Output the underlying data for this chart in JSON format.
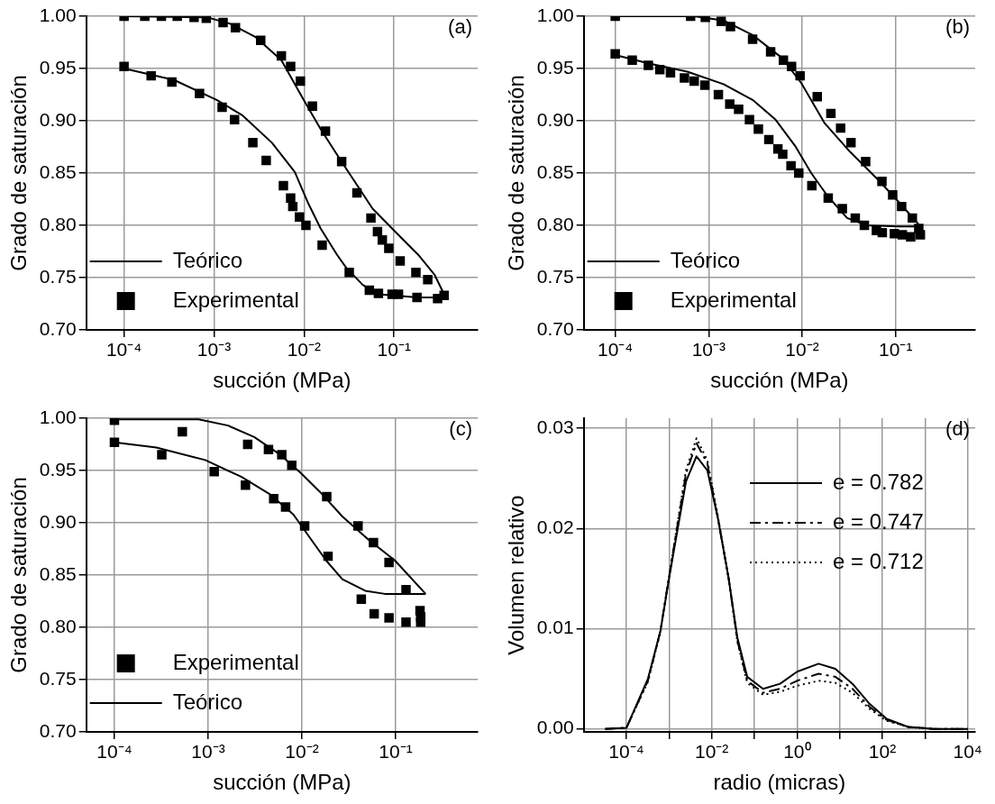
{
  "chart_data": [
    {
      "type": "scatter",
      "xlabel": "succión (MPa)",
      "ylabel": "Grado de saturación",
      "annotations": [
        "(a)"
      ],
      "log": "x",
      "grid": true,
      "legend": "bottom left",
      "xlim": [
        3.8e-05,
        0.85
      ],
      "ylim": [
        0.7,
        1.0
      ],
      "xticks": [
        {
          "value": 0.0001,
          "label": "10⁻⁴"
        },
        {
          "value": 0.001,
          "label": "10⁻³"
        },
        {
          "value": 0.01,
          "label": "10⁻²"
        },
        {
          "value": 0.1,
          "label": "10⁻¹"
        }
      ],
      "yticks": [
        {
          "value": 0.7,
          "label": "0.70"
        },
        {
          "value": 0.75,
          "label": "0.75"
        },
        {
          "value": 0.8,
          "label": "0.80"
        },
        {
          "value": 0.85,
          "label": "0.85"
        },
        {
          "value": 0.9,
          "label": "0.90"
        },
        {
          "value": 0.95,
          "label": "0.95"
        },
        {
          "value": 1,
          "label": "1.00"
        }
      ],
      "series": [
        {
          "name": "Teórico",
          "type": "line",
          "color": "#000000",
          "marker": "none",
          "line_style": "solid",
          "x": [
            0.0001,
            0.00083,
            0.00149,
            0.0029,
            0.0056,
            0.0099,
            0.0153,
            0.0252,
            0.0578,
            0.0951,
            0.185,
            0.281,
            0.36
          ],
          "values": [
            1.0,
            0.999,
            0.993,
            0.98,
            0.958,
            0.92,
            0.892,
            0.863,
            0.816,
            0.797,
            0.772,
            0.753,
            0.734
          ]
        },
        {
          "type": "line",
          "color": "#000000",
          "marker": "none",
          "line_style": "solid",
          "x": [
            0.0001,
            0.00036,
            0.00107,
            0.00208,
            0.0044,
            0.0079,
            0.011,
            0.0153,
            0.0232,
            0.0297,
            0.045,
            0.068,
            0.185,
            0.36
          ],
          "values": [
            0.95,
            0.939,
            0.92,
            0.905,
            0.879,
            0.851,
            0.822,
            0.797,
            0.772,
            0.759,
            0.743,
            0.734,
            0.731,
            0.731
          ]
        },
        {
          "name": "Experimental",
          "type": "scatter",
          "color": "#000000",
          "marker": "square",
          "x": [
            0.0001,
            0.00017,
            0.00026,
            0.00039,
            0.0006,
            0.00082,
            0.00126,
            0.00173,
            0.0033,
            0.0056,
            0.0071,
            0.0091,
            0.0124,
            0.0173,
            0.0262,
            0.0387,
            0.0554,
            0.0655,
            0.0741,
            0.0875,
            0.117,
            0.175,
            0.237,
            0.36
          ],
          "values": [
            1.0,
            1.0,
            1.0,
            1.0,
            0.999,
            0.998,
            0.994,
            0.989,
            0.977,
            0.962,
            0.952,
            0.938,
            0.914,
            0.89,
            0.861,
            0.831,
            0.807,
            0.794,
            0.786,
            0.778,
            0.766,
            0.755,
            0.748,
            0.733
          ]
        },
        {
          "type": "scatter",
          "color": "#000000",
          "marker": "square",
          "x": [
            0.0001,
            0.0002,
            0.00034,
            0.00069,
            0.00123,
            0.00169,
            0.0027,
            0.0038,
            0.0059,
            0.0071,
            0.0075,
            0.0089,
            0.0105,
            0.0159,
            0.0318,
            0.0532,
            0.0671,
            0.0951,
            0.112,
            0.18,
            0.305
          ],
          "values": [
            0.952,
            0.943,
            0.937,
            0.926,
            0.913,
            0.901,
            0.879,
            0.862,
            0.838,
            0.826,
            0.818,
            0.808,
            0.8,
            0.781,
            0.755,
            0.738,
            0.735,
            0.734,
            0.734,
            0.731,
            0.73
          ]
        }
      ]
    },
    {
      "type": "scatter",
      "xlabel": "succión (MPa)",
      "ylabel": "Grado de saturación",
      "annotations": [
        "(b)"
      ],
      "log": "x",
      "grid": true,
      "legend": "bottom left",
      "xlim": [
        4.6e-05,
        0.71
      ],
      "ylim": [
        0.7,
        1.0
      ],
      "xticks": [
        {
          "value": 0.0001,
          "label": "10⁻⁴"
        },
        {
          "value": 0.001,
          "label": "10⁻³"
        },
        {
          "value": 0.01,
          "label": "10⁻²"
        },
        {
          "value": 0.1,
          "label": "10⁻¹"
        }
      ],
      "yticks": [
        {
          "value": 0.7,
          "label": "0.70"
        },
        {
          "value": 0.75,
          "label": "0.75"
        },
        {
          "value": 0.8,
          "label": "0.80"
        },
        {
          "value": 0.85,
          "label": "0.85"
        },
        {
          "value": 0.9,
          "label": "0.90"
        },
        {
          "value": 0.95,
          "label": "0.95"
        },
        {
          "value": 1,
          "label": "1.00"
        }
      ],
      "series": [
        {
          "name": "Teórico",
          "type": "line",
          "color": "#000000",
          "marker": "none",
          "line_style": "solid",
          "x": [
            0.0001,
            0.0007,
            0.00144,
            0.00295,
            0.0061,
            0.0098,
            0.0173,
            0.0328,
            0.0675,
            0.109,
            0.184
          ],
          "values": [
            1.0,
            1.0,
            0.996,
            0.982,
            0.96,
            0.936,
            0.898,
            0.87,
            0.842,
            0.822,
            0.799
          ]
        },
        {
          "type": "line",
          "color": "#000000",
          "marker": "none",
          "line_style": "solid",
          "x": [
            0.0001,
            0.000226,
            0.00059,
            0.00144,
            0.00295,
            0.0052,
            0.0084,
            0.0125,
            0.0187,
            0.0303,
            0.049,
            0.109,
            0.184
          ],
          "values": [
            0.963,
            0.955,
            0.947,
            0.935,
            0.92,
            0.901,
            0.876,
            0.85,
            0.828,
            0.807,
            0.8,
            0.799,
            0.799
          ]
        },
        {
          "name": "Experimental",
          "type": "scatter",
          "color": "#000000",
          "marker": "square",
          "x": [
            0.0001,
            0.00064,
            0.00092,
            0.00136,
            0.00171,
            0.00295,
            0.0046,
            0.0063,
            0.0077,
            0.0095,
            0.0145,
            0.0203,
            0.0258,
            0.0333,
            0.0478,
            0.0714,
            0.093,
            0.116,
            0.151,
            0.177,
            0.184
          ],
          "values": [
            1.0,
            1.0,
            0.999,
            0.995,
            0.99,
            0.978,
            0.966,
            0.958,
            0.952,
            0.943,
            0.923,
            0.907,
            0.893,
            0.879,
            0.861,
            0.842,
            0.829,
            0.818,
            0.807,
            0.797,
            0.791
          ]
        },
        {
          "type": "scatter",
          "color": "#000000",
          "marker": "square",
          "x": [
            0.0001,
            0.000152,
            0.000226,
            0.0003,
            0.00039,
            0.00055,
            0.0007,
            0.00091,
            0.00127,
            0.00168,
            0.00209,
            0.00273,
            0.0034,
            0.0044,
            0.0055,
            0.0062,
            0.0076,
            0.0092,
            0.0127,
            0.019,
            0.0269,
            0.037,
            0.0463,
            0.0623,
            0.072,
            0.097,
            0.118,
            0.145
          ],
          "values": [
            0.964,
            0.958,
            0.953,
            0.949,
            0.946,
            0.941,
            0.938,
            0.934,
            0.925,
            0.916,
            0.911,
            0.901,
            0.892,
            0.882,
            0.873,
            0.868,
            0.857,
            0.85,
            0.838,
            0.826,
            0.816,
            0.807,
            0.8,
            0.795,
            0.793,
            0.792,
            0.791,
            0.789
          ]
        }
      ]
    },
    {
      "type": "scatter",
      "xlabel": "succión (MPa)",
      "ylabel": "Grado de saturación",
      "annotations": [
        "(c)"
      ],
      "log": "x",
      "grid": true,
      "legend": "bottom left",
      "xlim": [
        5e-05,
        0.75
      ],
      "ylim": [
        0.7,
        1.0
      ],
      "xticks": [
        {
          "value": 0.0001,
          "label": "10⁻⁴"
        },
        {
          "value": 0.001,
          "label": "10⁻³"
        },
        {
          "value": 0.01,
          "label": "10⁻²"
        },
        {
          "value": 0.1,
          "label": "10⁻¹"
        }
      ],
      "yticks": [
        {
          "value": 0.7,
          "label": "0.70"
        },
        {
          "value": 0.75,
          "label": "0.75"
        },
        {
          "value": 0.8,
          "label": "0.80"
        },
        {
          "value": 0.85,
          "label": "0.85"
        },
        {
          "value": 0.9,
          "label": "0.90"
        },
        {
          "value": 0.95,
          "label": "0.95"
        },
        {
          "value": 1,
          "label": "1.00"
        }
      ],
      "series": [
        {
          "name": "Experimental",
          "type": "scatter",
          "color": "#000000",
          "marker": "square",
          "x": [
            0.0001,
            0.00053,
            0.00264,
            0.0044,
            0.0061,
            0.0078,
            0.0184,
            0.0397,
            0.058,
            0.085,
            0.129
          ],
          "values": [
            0.998,
            0.987,
            0.975,
            0.97,
            0.965,
            0.955,
            0.925,
            0.897,
            0.881,
            0.862,
            0.836
          ]
        },
        {
          "type": "scatter",
          "color": "#000000",
          "marker": "square",
          "x": [
            0.0001,
            0.00032,
            0.00116,
            0.0025,
            0.005,
            0.0067,
            0.0107,
            0.019,
            0.043,
            0.059,
            0.085,
            0.129,
            0.182,
            0.185,
            0.185
          ],
          "values": [
            0.977,
            0.965,
            0.949,
            0.936,
            0.923,
            0.915,
            0.897,
            0.868,
            0.827,
            0.813,
            0.809,
            0.805,
            0.816,
            0.81,
            0.805
          ]
        },
        {
          "name": "Teórico",
          "type": "line",
          "color": "#000000",
          "marker": "none",
          "line_style": "solid",
          "x": [
            0.0001,
            0.00079,
            0.00163,
            0.0031,
            0.0059,
            0.0099,
            0.0154,
            0.027,
            0.051,
            0.098,
            0.209
          ],
          "values": [
            0.999,
            0.999,
            0.993,
            0.982,
            0.965,
            0.947,
            0.93,
            0.906,
            0.884,
            0.864,
            0.832
          ]
        },
        {
          "type": "line",
          "color": "#000000",
          "marker": "none",
          "line_style": "solid",
          "x": [
            0.0001,
            0.00028,
            0.00093,
            0.00225,
            0.0046,
            0.0081,
            0.0121,
            0.0181,
            0.027,
            0.0474,
            0.0767,
            0.209
          ],
          "values": [
            0.977,
            0.972,
            0.96,
            0.944,
            0.927,
            0.908,
            0.886,
            0.864,
            0.846,
            0.835,
            0.832,
            0.832
          ]
        }
      ]
    },
    {
      "type": "line",
      "xlabel": "radio (micras)",
      "ylabel": "Volumen relativo",
      "annotations": [
        "(d)"
      ],
      "log": "x",
      "grid": true,
      "legend": "top right",
      "xlim": [
        1e-05,
        15000
      ],
      "ylim": [
        -0.0003,
        0.031
      ],
      "xticks": [
        {
          "value": 0.0001,
          "label": "10⁻⁴"
        },
        {
          "value": 0.001,
          "label": null
        },
        {
          "value": 0.01,
          "label": "10⁻²"
        },
        {
          "value": 0.1,
          "label": null
        },
        {
          "value": 1,
          "label": "10⁰"
        },
        {
          "value": 10,
          "label": null
        },
        {
          "value": 100,
          "label": "10²"
        },
        {
          "value": 1000,
          "label": null
        },
        {
          "value": 10000,
          "label": "10⁴"
        }
      ],
      "yticks": [
        {
          "value": 0,
          "label": "0.00"
        },
        {
          "value": 0.01,
          "label": "0.01"
        },
        {
          "value": 0.02,
          "label": "0.02"
        },
        {
          "value": 0.03,
          "label": "0.03"
        }
      ],
      "x": [
        3.2e-05,
        0.0001,
        0.00032,
        0.00063,
        0.001,
        0.0016,
        0.0025,
        0.0044,
        0.0079,
        0.014,
        0.025,
        0.04,
        0.068,
        0.16,
        0.4,
        1,
        3.2,
        7.9,
        20,
        50,
        126,
        400,
        1600,
        10000
      ],
      "series": [
        {
          "name": "e = 0.782",
          "color": "#000000",
          "line_style": "solid",
          "values": [
            0,
            0.0001,
            0.005,
            0.0098,
            0.015,
            0.02,
            0.0247,
            0.0272,
            0.0258,
            0.021,
            0.015,
            0.0091,
            0.0052,
            0.004,
            0.0045,
            0.0057,
            0.0065,
            0.006,
            0.0045,
            0.0025,
            0.001,
            0.0002,
            0,
            0
          ]
        },
        {
          "name": "e = 0.747",
          "color": "#000000",
          "line_style": "dashed",
          "values": [
            0,
            0.0001,
            0.0048,
            0.0098,
            0.0152,
            0.0205,
            0.0255,
            0.0285,
            0.0265,
            0.021,
            0.015,
            0.0088,
            0.0048,
            0.0036,
            0.004,
            0.0048,
            0.0055,
            0.0052,
            0.004,
            0.0022,
            0.0009,
            0.0002,
            0,
            0
          ]
        },
        {
          "name": "e = 0.712",
          "color": "#000000",
          "line_style": "dotted",
          "values": [
            0,
            0.0001,
            0.0047,
            0.0097,
            0.0152,
            0.0207,
            0.0258,
            0.029,
            0.0268,
            0.0212,
            0.015,
            0.0087,
            0.0046,
            0.0034,
            0.0037,
            0.0043,
            0.0048,
            0.0046,
            0.0036,
            0.002,
            0.0008,
            0.0002,
            0,
            0
          ]
        }
      ]
    }
  ]
}
